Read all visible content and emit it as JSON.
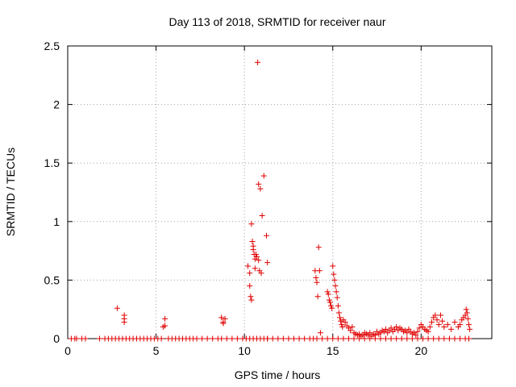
{
  "chart_data": {
    "type": "scatter",
    "title": "Day 113 of 2018, SRMTID for receiver naur",
    "xlabel": "GPS time / hours",
    "ylabel": "SRMTID / TECUs",
    "xlim": [
      0,
      24
    ],
    "ylim": [
      0,
      2.5
    ],
    "xticks": [
      0,
      5,
      10,
      15,
      20
    ],
    "yticks": [
      0,
      0.5,
      1,
      1.5,
      2,
      2.5
    ],
    "xtick_labels": [
      "0",
      "5",
      "10",
      "15",
      "20"
    ],
    "ytick_labels": [
      "0",
      "0.5",
      "1",
      "1.5",
      "2",
      "2.5"
    ],
    "grid": true,
    "marker": "+",
    "color": "#e00000",
    "series": [
      {
        "x": [
          0.2,
          0.4,
          0.5,
          0.8,
          1.0,
          1.8,
          2.1,
          2.3,
          2.5,
          2.7,
          2.9,
          3.1,
          3.3,
          3.5,
          3.7,
          3.9,
          4.1,
          4.3,
          4.5,
          4.7,
          4.9,
          5.1,
          5.3,
          5.7,
          5.9,
          6.1,
          6.3,
          6.5,
          6.7,
          6.9,
          7.1,
          7.3,
          7.6,
          7.9,
          8.2,
          8.5,
          8.7,
          9.0,
          9.3,
          9.6,
          9.9,
          10.1,
          10.3,
          10.5,
          10.7,
          10.9,
          11.1,
          11.3,
          11.6,
          11.9,
          12.2,
          12.5,
          12.8,
          13.1,
          13.4,
          13.7,
          13.9,
          14.1,
          14.4,
          14.7,
          15.0,
          15.3,
          15.6,
          15.9,
          16.2,
          16.5,
          16.8,
          17.1,
          17.4,
          17.7,
          18.0,
          18.3,
          18.6,
          18.9,
          19.2,
          19.5,
          19.8,
          20.1,
          20.4,
          20.7,
          21.0,
          21.3,
          21.6,
          21.9,
          22.2,
          22.5,
          22.7
        ],
        "y": [
          0,
          0,
          0,
          0,
          0,
          0,
          0,
          0,
          0,
          0,
          0,
          0,
          0,
          0,
          0,
          0,
          0,
          0,
          0,
          0,
          0,
          0,
          0,
          0,
          0,
          0,
          0,
          0,
          0,
          0,
          0,
          0,
          0,
          0,
          0,
          0,
          0,
          0,
          0,
          0,
          0,
          0,
          0,
          0,
          0,
          0,
          0,
          0,
          0,
          0,
          0,
          0,
          0,
          0,
          0,
          0,
          0,
          0,
          0,
          0,
          0,
          0,
          0,
          0,
          0,
          0,
          0,
          0,
          0,
          0,
          0,
          0,
          0,
          0,
          0,
          0,
          0,
          0,
          0,
          0,
          0,
          0,
          0,
          0,
          0,
          0,
          0
        ]
      },
      {
        "x": [
          2.8,
          3.2,
          3.2,
          3.2,
          5.4,
          5.5,
          5.5,
          8.7,
          8.8,
          8.8,
          8.9,
          10.2,
          10.3,
          10.3,
          10.35,
          10.4,
          10.4,
          10.45,
          10.5,
          10.5,
          10.55,
          10.6,
          10.6,
          10.65,
          10.7,
          10.75,
          10.8,
          10.8,
          10.85,
          10.9,
          10.95,
          11.0,
          11.1,
          11.25,
          11.3,
          11.3
        ],
        "y": [
          0.26,
          0.2,
          0.17,
          0.14,
          0.1,
          0.11,
          0.17,
          0.18,
          0.14,
          0.13,
          0.17,
          0.62,
          0.56,
          0.45,
          0.36,
          0.33,
          0.98,
          0.83,
          0.79,
          0.76,
          0.72,
          0.68,
          0.6,
          0.72,
          0.7,
          2.36,
          1.32,
          0.67,
          0.58,
          1.28,
          0.56,
          1.05,
          1.39,
          0.88,
          0.65,
          0.0
        ]
      },
      {
        "x": [
          14.0,
          14.05,
          14.1,
          14.15,
          14.2,
          14.25,
          14.3,
          14.7,
          14.75,
          14.8,
          14.85,
          14.9,
          14.95,
          15.0,
          15.05,
          15.1,
          15.15,
          15.2,
          15.25,
          15.3,
          15.35,
          15.4,
          15.45,
          15.5,
          15.55,
          15.6,
          15.7,
          15.8,
          15.9,
          16.0,
          16.1,
          16.2,
          16.3,
          16.4,
          16.5,
          16.6,
          16.7,
          16.8,
          16.9,
          17.0,
          17.1,
          17.2,
          17.3,
          17.4,
          17.5,
          17.6,
          17.7,
          17.8,
          17.9,
          18.0,
          18.1,
          18.2,
          18.3,
          18.4,
          18.5,
          18.6,
          18.7,
          18.8,
          18.9,
          19.0,
          19.1,
          19.2,
          19.3,
          19.4,
          19.5,
          19.6,
          19.7,
          19.8,
          19.9,
          20.0,
          20.1,
          20.2,
          20.3,
          20.4,
          20.5,
          20.6,
          20.7,
          20.8,
          20.9,
          21.0,
          21.1,
          21.2,
          21.3,
          21.5,
          21.7,
          21.9,
          22.1,
          22.2,
          22.3,
          22.4,
          22.5,
          22.55,
          22.6,
          22.65,
          22.7,
          22.75
        ],
        "y": [
          0.58,
          0.52,
          0.48,
          0.36,
          0.78,
          0.58,
          0.05,
          0.4,
          0.38,
          0.33,
          0.31,
          0.28,
          0.26,
          0.62,
          0.55,
          0.5,
          0.45,
          0.4,
          0.35,
          0.28,
          0.22,
          0.18,
          0.15,
          0.12,
          0.1,
          0.16,
          0.14,
          0.11,
          0.09,
          0.07,
          0.1,
          0.05,
          0.04,
          0.03,
          0.04,
          0.02,
          0.03,
          0.05,
          0.04,
          0.03,
          0.05,
          0.02,
          0.04,
          0.03,
          0.06,
          0.04,
          0.05,
          0.07,
          0.06,
          0.08,
          0.05,
          0.07,
          0.09,
          0.06,
          0.08,
          0.1,
          0.07,
          0.09,
          0.08,
          0.06,
          0.07,
          0.05,
          0.08,
          0.06,
          0.04,
          0.05,
          0.03,
          0.06,
          0.09,
          0.12,
          0.1,
          0.08,
          0.07,
          0.06,
          0.1,
          0.14,
          0.18,
          0.2,
          0.16,
          0.12,
          0.2,
          0.15,
          0.1,
          0.12,
          0.08,
          0.14,
          0.1,
          0.12,
          0.16,
          0.18,
          0.2,
          0.25,
          0.22,
          0.17,
          0.12,
          0.08
        ]
      }
    ]
  }
}
